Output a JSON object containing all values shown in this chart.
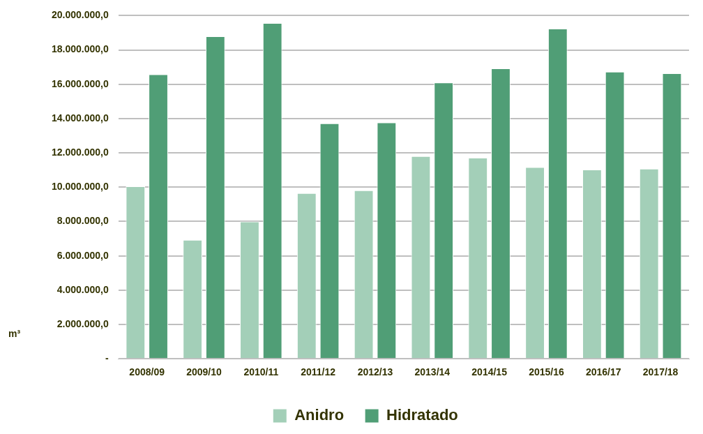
{
  "chart_data": {
    "type": "bar",
    "ylabel": "m³",
    "categories": [
      "2008/09",
      "2009/10",
      "2010/11",
      "2011/12",
      "2012/13",
      "2013/14",
      "2014/15",
      "2015/16",
      "2016/17",
      "2017/18"
    ],
    "series": [
      {
        "name": "Anidro",
        "color": "#a3cfb8",
        "values": [
          10050000,
          6930000,
          8000000,
          9660000,
          9820000,
          11810000,
          11720000,
          11170000,
          11030000,
          11080000
        ]
      },
      {
        "name": "Hidratado",
        "color": "#509e76",
        "values": [
          16580000,
          18800000,
          19570000,
          13720000,
          13770000,
          16100000,
          16930000,
          19240000,
          16730000,
          16640000
        ]
      }
    ],
    "ylim": [
      0,
      20000000
    ],
    "yticks": [
      {
        "value": 0,
        "label": "-"
      },
      {
        "value": 2000000,
        "label": "2.000.000,0"
      },
      {
        "value": 4000000,
        "label": "4.000.000,0"
      },
      {
        "value": 6000000,
        "label": "6.000.000,0"
      },
      {
        "value": 8000000,
        "label": "8.000.000,0"
      },
      {
        "value": 10000000,
        "label": "10.000.000,0"
      },
      {
        "value": 12000000,
        "label": "12.000.000,0"
      },
      {
        "value": 14000000,
        "label": "14.000.000,0"
      },
      {
        "value": 16000000,
        "label": "16.000.000,0"
      },
      {
        "value": 18000000,
        "label": "18.000.000,0"
      },
      {
        "value": 20000000,
        "label": "20.000.000,0"
      }
    ],
    "grid": "y",
    "legend": "bottom"
  }
}
